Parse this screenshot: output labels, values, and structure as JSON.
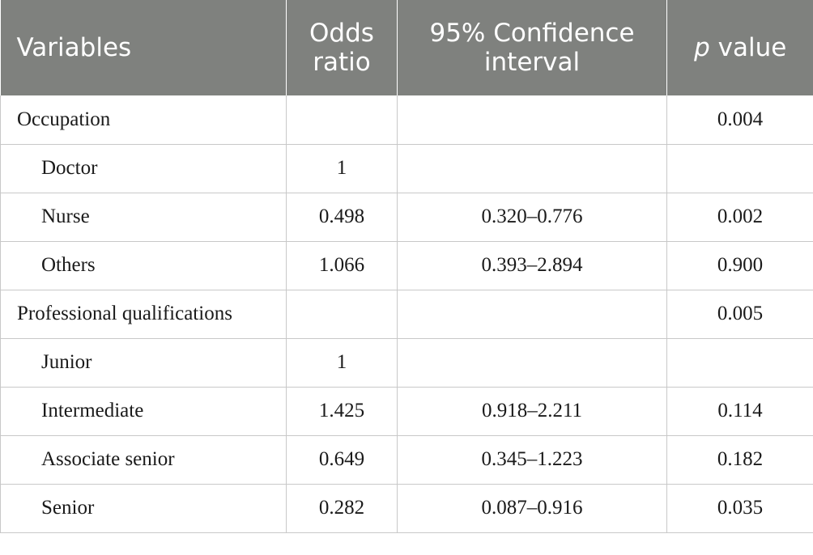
{
  "header": {
    "variables": "Variables",
    "odds_line1": "Odds",
    "odds_line2": "ratio",
    "ci_line1": "95% Confidence",
    "ci_line2": "interval",
    "p_italic": "p",
    "p_rest": " value"
  },
  "rows": [
    {
      "label": "Occupation",
      "odds": "",
      "ci": "",
      "p": "0.004"
    },
    {
      "label": "Doctor",
      "odds": "1",
      "ci": "",
      "p": ""
    },
    {
      "label": "Nurse",
      "odds": "0.498",
      "ci": "0.320–0.776",
      "p": "0.002"
    },
    {
      "label": "Others",
      "odds": "1.066",
      "ci": "0.393–2.894",
      "p": "0.900"
    },
    {
      "label": "Professional qualifications",
      "odds": "",
      "ci": "",
      "p": "0.005"
    },
    {
      "label": "Junior",
      "odds": "1",
      "ci": "",
      "p": ""
    },
    {
      "label": "Intermediate",
      "odds": "1.425",
      "ci": "0.918–2.211",
      "p": "0.114"
    },
    {
      "label": "Associate senior",
      "odds": "0.649",
      "ci": "0.345–1.223",
      "p": "0.182"
    },
    {
      "label": "Senior",
      "odds": "0.282",
      "ci": "0.087–0.916",
      "p": "0.035"
    }
  ],
  "colors": {
    "header_bg": "#7f817e",
    "header_text": "#ffffff",
    "grid_line": "#c8c8c8"
  }
}
